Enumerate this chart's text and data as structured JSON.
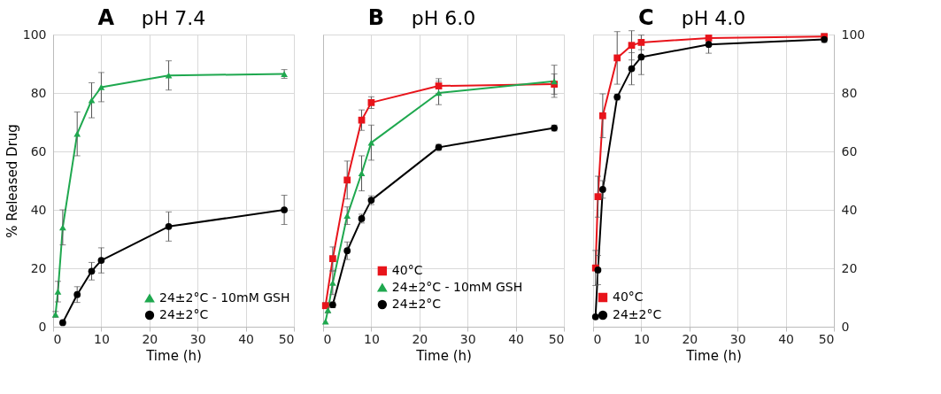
{
  "chart_data": [
    {
      "type": "line",
      "title": "A",
      "subtitle": "pH 7.4",
      "xlabel": "Time (h)",
      "ylabel": "% Released Drug",
      "xlim": [
        0,
        50
      ],
      "xticks": [
        0,
        10,
        20,
        30,
        40,
        50
      ],
      "ylim": [
        0,
        100
      ],
      "yticks": [
        0,
        20,
        40,
        60,
        80,
        100
      ],
      "grid": true,
      "legend": "bottom right",
      "line_style": "solid",
      "series": [
        {
          "name": "24±2°C - 10mM GSH",
          "color": "#1fa84f",
          "marker": "triangle",
          "x": [
            0.5,
            1,
            2,
            5,
            8,
            10,
            24,
            48
          ],
          "values": [
            4.2,
            12,
            34,
            66,
            77.5,
            82,
            86,
            86.5
          ],
          "errors": [
            1,
            3.5,
            6,
            7.5,
            6,
            5,
            5,
            1.5
          ]
        },
        {
          "name": "24±2°C",
          "color": "#000000",
          "marker": "circle",
          "x": [
            2,
            5,
            8,
            10,
            24,
            48
          ],
          "values": [
            1.4,
            11,
            19,
            22.7,
            34.3,
            40
          ],
          "errors": [
            null,
            2.7,
            3,
            4.3,
            5,
            5
          ]
        }
      ]
    },
    {
      "type": "line",
      "title": "B",
      "subtitle": "pH 6.0",
      "xlabel": "Time (h)",
      "xlim": [
        0,
        50
      ],
      "xticks": [
        0,
        10,
        20,
        30,
        40,
        50
      ],
      "ylim": [
        0,
        100
      ],
      "yticks": [
        0,
        20,
        40,
        60,
        80,
        100
      ],
      "grid": true,
      "legend": "bottom",
      "tick_labels": "x",
      "line_style": "solid",
      "series": [
        {
          "name": "40°C",
          "color": "#e8141b",
          "marker": "square",
          "x": [
            0.5,
            2,
            5,
            8,
            10,
            24,
            48
          ],
          "values": [
            7.2,
            23.3,
            50.2,
            70.7,
            76.7,
            82.4,
            83
          ],
          "errors": [
            1,
            4,
            6.5,
            3.5,
            2,
            2.5,
            3.5
          ]
        },
        {
          "name": "24±2°C - 10mM GSH",
          "color": "#1fa84f",
          "marker": "triangle",
          "x": [
            0.5,
            1,
            2,
            5,
            8,
            10,
            24,
            48
          ],
          "values": [
            1.8,
            5.7,
            15,
            38,
            52.5,
            63,
            80,
            84
          ],
          "errors": [
            null,
            1,
            4,
            3,
            6,
            6,
            4,
            5.5
          ]
        },
        {
          "name": "24±2°C",
          "color": "#000000",
          "marker": "circle",
          "x": [
            2,
            5,
            8,
            10,
            24,
            48
          ],
          "values": [
            7.5,
            26,
            37,
            43.3,
            61.4,
            68
          ],
          "errors": [
            1,
            3,
            1.5,
            1.5,
            1,
            1
          ]
        }
      ]
    },
    {
      "type": "line",
      "title": "C",
      "subtitle": "pH 4.0",
      "xlabel": "Time (h)",
      "xlim": [
        0,
        50
      ],
      "xticks": [
        0,
        10,
        20,
        30,
        40,
        50
      ],
      "y2lim": [
        0,
        100
      ],
      "y2ticks": [
        0,
        20,
        40,
        60,
        80,
        100
      ],
      "grid": true,
      "legend": "bottom left",
      "line_style": "solid",
      "series": [
        {
          "name": "40°C",
          "color": "#e8141b",
          "marker": "square",
          "axis": "y2",
          "x": [
            0.5,
            1,
            2,
            5,
            8,
            10,
            24,
            48
          ],
          "values": [
            20.1,
            44.5,
            72.2,
            92,
            96.3,
            97.3,
            98.8,
            99.3
          ],
          "errors": [
            6,
            7,
            7.5,
            9,
            5,
            2.5,
            null,
            1
          ]
        },
        {
          "name": "24±2°C",
          "color": "#000000",
          "marker": "circle",
          "axis": "y2",
          "x": [
            0.5,
            1,
            2,
            5,
            8,
            10,
            24,
            48
          ],
          "values": [
            3.4,
            19.4,
            47,
            78.6,
            88.3,
            92.3,
            96.6,
            98.3
          ],
          "errors": [
            null,
            5,
            3,
            1,
            5.5,
            6,
            3,
            1
          ]
        }
      ]
    }
  ]
}
